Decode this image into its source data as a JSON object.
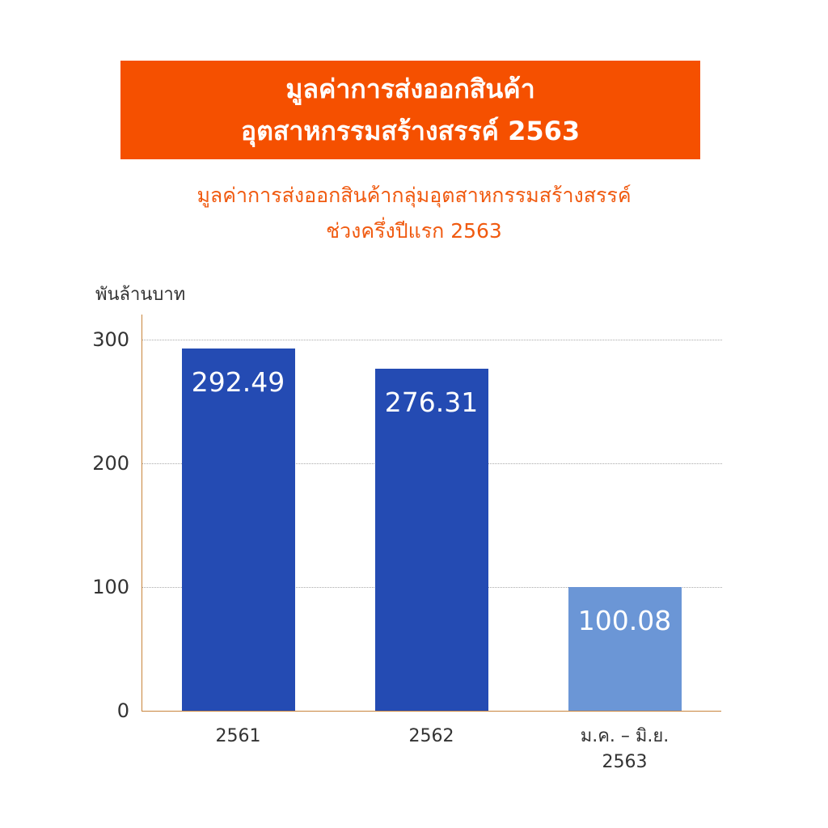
{
  "chart_data": {
    "type": "bar",
    "title": [
      "มูลค่าการส่งออกสินค้า",
      "อุตสาหกรรมสร้างสรรค์ 2563"
    ],
    "subtitle": [
      "มูลค่าการส่งออกสินค้ากลุ่มอุตสาหกรรมสร้างสรรค์",
      "ช่วงครึ่งปีแรก 2563"
    ],
    "y_label": "พันล้านบาท",
    "categories": [
      "2561",
      "2562",
      "ม.ค. – มิ.ย. 2563"
    ],
    "values": [
      292.49,
      276.31,
      100.08
    ],
    "colors": [
      "#244bb3",
      "#244bb3",
      "#6b96d6"
    ],
    "ylim": [
      0,
      320
    ],
    "yticks": [
      0,
      100,
      200,
      300
    ],
    "grid": true
  }
}
